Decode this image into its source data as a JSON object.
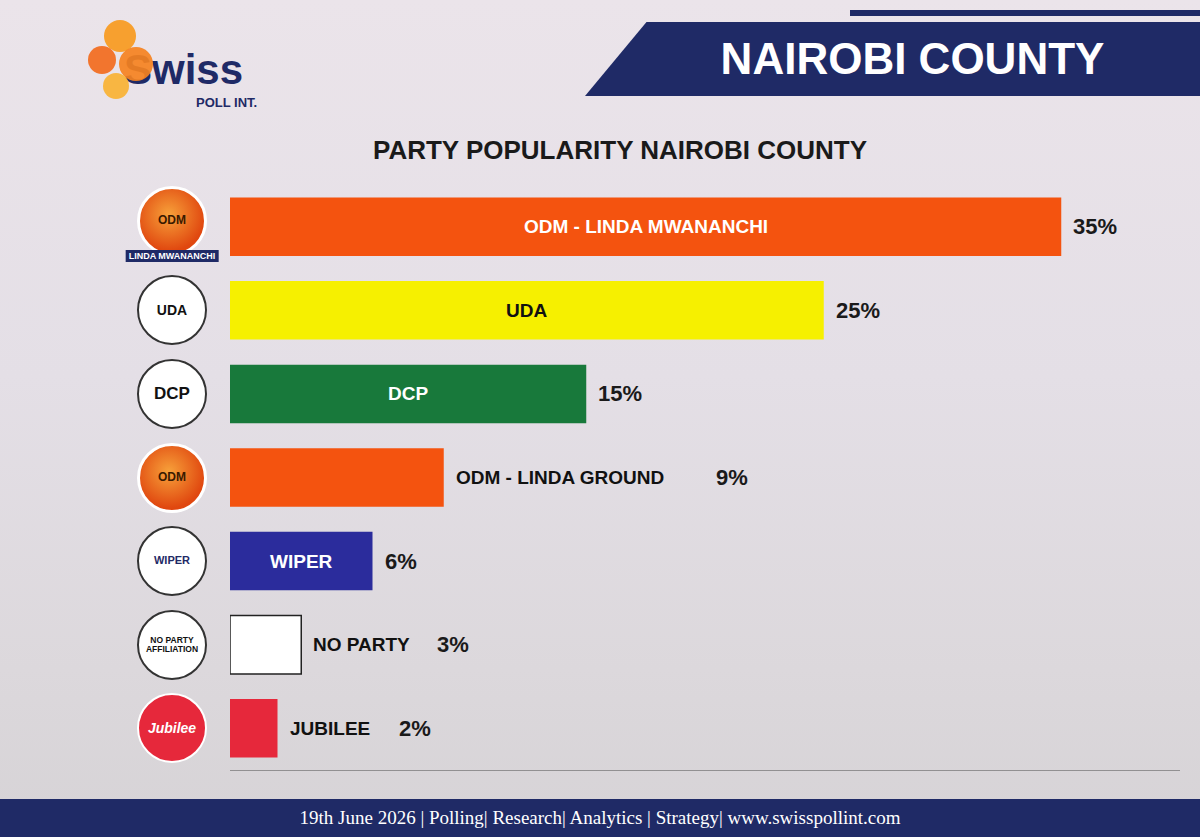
{
  "page": {
    "logo": {
      "name": "Swiss",
      "sub": "POLL INT."
    },
    "header": "NAIROBI COUNTY",
    "footer": "19th June 2026 | Polling| Research| Analytics | Strategy| www.swisspollint.com",
    "icons": [
      {
        "label": "ODM",
        "caption": "LINDA MWANANCHI"
      },
      {
        "label": "UDA"
      },
      {
        "label": "DCP"
      },
      {
        "label": "ODM"
      },
      {
        "label": "WIPER"
      },
      {
        "label": "NO PARTY AFFILIATION"
      },
      {
        "label": "Jubilee"
      }
    ]
  },
  "chart_data": {
    "type": "bar",
    "title": "PARTY POPULARITY NAIROBI COUNTY",
    "orientation": "horizontal",
    "categories": [
      "ODM - LINDA MWANANCHI",
      "UDA",
      "DCP",
      "ODM - LINDA GROUND",
      "WIPER",
      "NO PARTY",
      "JUBILEE"
    ],
    "values": [
      35,
      25,
      15,
      9,
      6,
      3,
      2
    ],
    "value_labels": [
      "35%",
      "25%",
      "15%",
      "9%",
      "6%",
      "3%",
      "2%"
    ],
    "colors": [
      "#f4530f",
      "#f6f000",
      "#18793b",
      "#f4530f",
      "#2b2c9c",
      "#ffffff",
      "#e6283b"
    ],
    "xlim": [
      0,
      40
    ],
    "data_labels": true,
    "tick_labels": false,
    "grid": false
  }
}
